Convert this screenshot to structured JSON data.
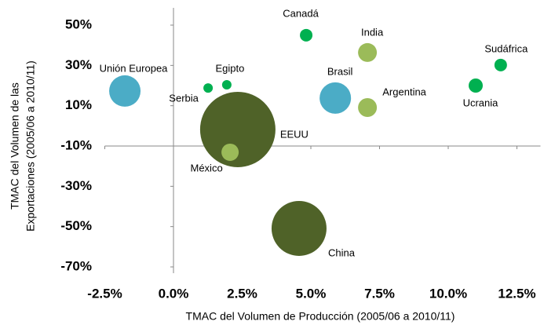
{
  "chart_data": {
    "type": "scatter",
    "xlabel": "TMAC del Volumen de Producción (2005/06 a 2010/11)",
    "ylabel": [
      "TMAC del Volumen de las",
      "Exportaciones (2005/06 a 2010/11)"
    ],
    "names": [
      "Unión Europea",
      "Serbia",
      "Egipto",
      "EEUU",
      "México",
      "Canadá",
      "Brasil",
      "India",
      "Argentina",
      "China",
      "Ucrania",
      "Sudáfrica"
    ],
    "x": [
      -1.77,
      1.26,
      1.94,
      2.34,
      2.06,
      4.83,
      5.89,
      7.06,
      7.06,
      4.57,
      11.0,
      11.91
    ],
    "y": [
      17.3,
      18.8,
      20.4,
      -1.8,
      -13.1,
      45,
      13.8,
      36.4,
      9.1,
      -50.9,
      20,
      30.2
    ],
    "sizes": [
      400,
      36,
      36,
      2304,
      121,
      64,
      400,
      144,
      144,
      1225,
      81,
      64
    ],
    "colors": [
      "#4bacc6",
      "#00b050",
      "#00b050",
      "#4f6228",
      "#9bbb59",
      "#00b050",
      "#4bacc6",
      "#9bbb59",
      "#9bbb59",
      "#4f6228",
      "#00b050",
      "#00b050"
    ],
    "xlim": [
      -2.5,
      12.5
    ],
    "ylim": [
      -70,
      50
    ],
    "xticks": [
      {
        "value": -2.5,
        "label": "-2.5%"
      },
      {
        "value": 0,
        "label": "0.0%"
      },
      {
        "value": 2.5,
        "label": "2.5%"
      },
      {
        "value": 5,
        "label": "5.0%"
      },
      {
        "value": 7.5,
        "label": "7.5%"
      },
      {
        "value": 10,
        "label": "10.0%"
      },
      {
        "value": 12.5,
        "label": "12.5%"
      }
    ],
    "yticks": [
      {
        "value": 50,
        "label": "50%"
      },
      {
        "value": 30,
        "label": "30%"
      },
      {
        "value": 10,
        "label": "10%"
      },
      {
        "value": -10,
        "label": "-10%"
      },
      {
        "value": -30,
        "label": "-30%"
      },
      {
        "value": -50,
        "label": "-50%"
      },
      {
        "value": -70,
        "label": "-70%"
      }
    ]
  }
}
